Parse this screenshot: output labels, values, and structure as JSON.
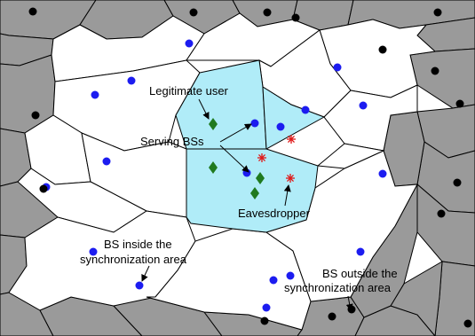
{
  "colors": {
    "outside_cell_fill": "#9a9a9a",
    "inside_cell_fill": "#ffffff",
    "serving_cell_fill": "#b0ecf8",
    "cell_edge": "#000000",
    "inside_bs": "#1c1cf0",
    "outside_bs": "#000000",
    "user_marker": "#1f7a1f",
    "eavesdropper_marker": "#e01818"
  },
  "icons": {
    "inside_bs": "blue-dot",
    "outside_bs": "black-dot",
    "legitimate_user": "green-diamond",
    "eavesdropper": "red-asterisk"
  },
  "annotations": {
    "legitimate_user": "Legitimate user",
    "serving_bss": "Serving BSs",
    "eavesdropper": "Eavesdropper",
    "bs_inside_line1": "BS inside the",
    "bs_inside_line2": "synchronization area",
    "bs_outside_line1": "BS outside the",
    "bs_outside_line2": "synchronization area"
  }
}
